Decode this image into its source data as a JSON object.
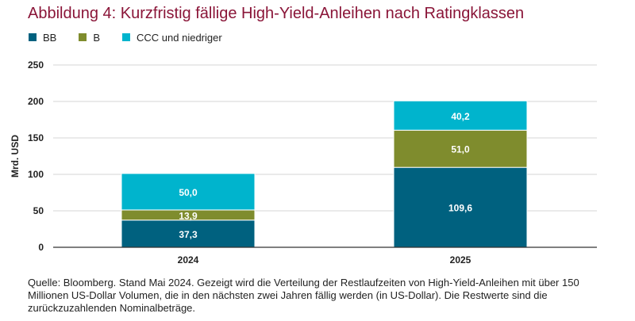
{
  "chart_data": {
    "type": "bar",
    "stacked": true,
    "title": "Abbildung 4: Kurzfristig fällige High-Yield-Anleihen nach Ratingklassen",
    "xlabel": "",
    "ylabel": "Mrd. USD",
    "ylim": [
      0,
      250
    ],
    "yticks": [
      0,
      50,
      100,
      150,
      200,
      250
    ],
    "grid": true,
    "legend_position": "top-left",
    "categories": [
      "2024",
      "2025"
    ],
    "series": [
      {
        "name": "BB",
        "color": "#00617f",
        "values": [
          37.3,
          109.6
        ],
        "labels": [
          "37,3",
          "109,6"
        ]
      },
      {
        "name": "B",
        "color": "#7f8c2d",
        "values": [
          13.9,
          51.0
        ],
        "labels": [
          "13,9",
          "51,0"
        ]
      },
      {
        "name": "CCC und niedriger",
        "color": "#00b4cd",
        "values": [
          50.0,
          40.2
        ],
        "labels": [
          "50,0",
          "40,2"
        ]
      }
    ]
  },
  "source_note": "Quelle: Bloomberg. Stand Mai 2024. Gezeigt wird die Verteilung der Restlaufzeiten von High-Yield-Anleihen mit über 150 Millionen US-Dollar Volumen, die in den nächsten zwei Jahren fällig werden (in US-Dollar). Die Restwerte sind die zurückzuzahlenden Nominalbeträge."
}
